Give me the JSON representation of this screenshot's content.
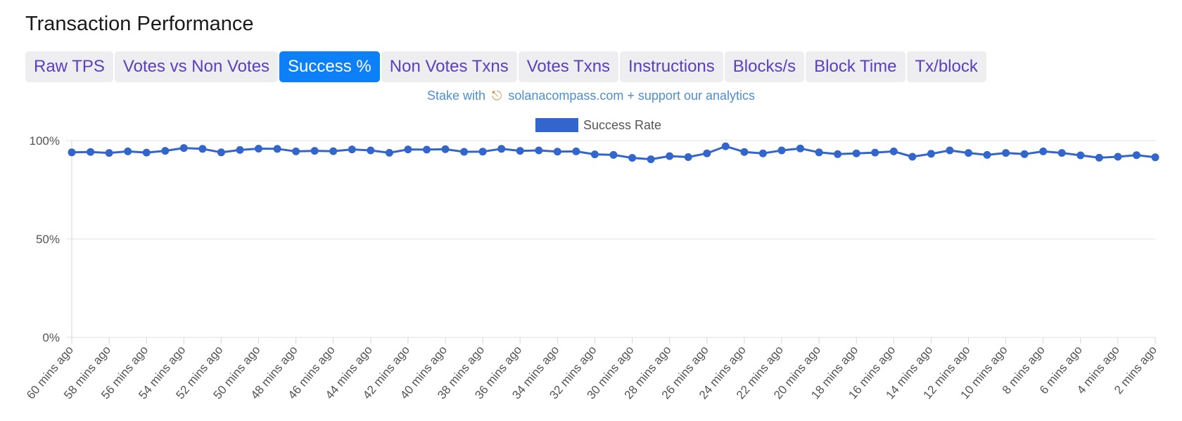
{
  "title": "Transaction Performance",
  "tabs": [
    {
      "label": "Raw TPS",
      "active": false
    },
    {
      "label": "Votes vs Non Votes",
      "active": false
    },
    {
      "label": "Success %",
      "active": true
    },
    {
      "label": "Non Votes Txns",
      "active": false
    },
    {
      "label": "Votes Txns",
      "active": false
    },
    {
      "label": "Instructions",
      "active": false
    },
    {
      "label": "Blocks/s",
      "active": false
    },
    {
      "label": "Block Time",
      "active": false
    },
    {
      "label": "Tx/block",
      "active": false
    }
  ],
  "promo": {
    "prefix": "Stake with",
    "icon": "compass-icon",
    "link_text": "solanacompass.com + support our analytics"
  },
  "colors": {
    "series": "#3366cc",
    "tab_bg": "#eeeef0",
    "tab_text": "#5a3fc0",
    "tab_active_bg": "#0d7ff7",
    "promo_text": "#4e8fd0"
  },
  "chart_data": {
    "type": "line",
    "legend_position": "top-center",
    "grid": true,
    "ylim": [
      0,
      100
    ],
    "y_ticks": [
      {
        "value": 0,
        "label": "0%"
      },
      {
        "value": 50,
        "label": "50%"
      },
      {
        "value": 100,
        "label": "100%"
      }
    ],
    "x_labels": [
      "60 mins ago",
      "58 mins ago",
      "56 mins ago",
      "54 mins ago",
      "52 mins ago",
      "50 mins ago",
      "48 mins ago",
      "46 mins ago",
      "44 mins ago",
      "42 mins ago",
      "40 mins ago",
      "38 mins ago",
      "36 mins ago",
      "34 mins ago",
      "32 mins ago",
      "30 mins ago",
      "28 mins ago",
      "26 mins ago",
      "24 mins ago",
      "22 mins ago",
      "20 mins ago",
      "18 mins ago",
      "16 mins ago",
      "14 mins ago",
      "12 mins ago",
      "10 mins ago",
      "8 mins ago",
      "6 mins ago",
      "4 mins ago",
      "2 mins ago"
    ],
    "series": [
      {
        "name": "Success Rate",
        "values": [
          94.0,
          94.2,
          93.7,
          94.5,
          93.9,
          94.8,
          96.2,
          95.8,
          94.0,
          95.2,
          95.9,
          95.8,
          94.5,
          94.8,
          94.6,
          95.5,
          95.0,
          93.8,
          95.5,
          95.4,
          95.6,
          94.3,
          94.4,
          95.8,
          94.8,
          95.0,
          94.4,
          94.5,
          93.0,
          92.7,
          91.2,
          90.5,
          92.1,
          91.6,
          93.5,
          97.1,
          94.2,
          93.5,
          95.0,
          96.0,
          94.0,
          93.1,
          93.5,
          93.9,
          94.5,
          91.8,
          93.3,
          95.0,
          93.7,
          92.7,
          93.7,
          93.1,
          94.5,
          93.7,
          92.5,
          91.3,
          91.8,
          92.6,
          91.5
        ]
      }
    ]
  }
}
